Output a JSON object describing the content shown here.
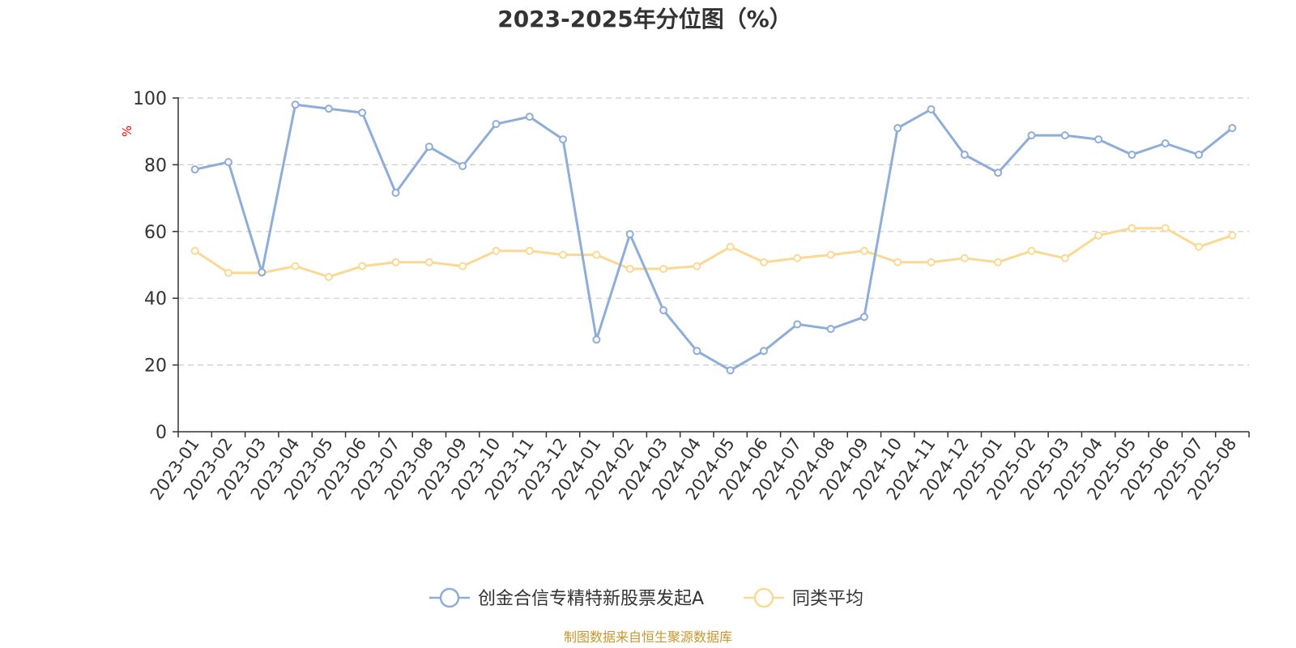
{
  "chart_data": {
    "type": "line",
    "title": "2023-2025年分位图（%）",
    "ylabel": "%",
    "ylim": [
      0,
      100
    ],
    "yticks": [
      0,
      20,
      40,
      60,
      80,
      100
    ],
    "grid": true,
    "legend_placement": "bottom-center",
    "x": [
      "2023-01",
      "2023-02",
      "2023-03",
      "2023-04",
      "2023-05",
      "2023-06",
      "2023-07",
      "2023-08",
      "2023-09",
      "2023-10",
      "2023-11",
      "2023-12",
      "2024-01",
      "2024-02",
      "2024-03",
      "2024-04",
      "2024-05",
      "2024-06",
      "2024-07",
      "2024-08",
      "2024-09",
      "2024-10",
      "2024-11",
      "2024-12",
      "2025-01",
      "2025-02",
      "2025-03",
      "2025-04",
      "2025-05",
      "2025-06",
      "2025-07",
      "2025-08"
    ],
    "series": [
      {
        "name": "创金合信专精特新股票发起A",
        "color": "#8eadd8",
        "values": [
          78.6,
          80.8,
          47.8,
          98.0,
          96.8,
          95.6,
          71.6,
          85.4,
          79.6,
          92.2,
          94.4,
          87.6,
          27.6,
          59.2,
          36.4,
          24.2,
          18.4,
          24.2,
          32.2,
          30.8,
          34.4,
          91.0,
          96.6,
          83.0,
          77.6,
          88.8,
          88.8,
          87.6,
          83.0,
          86.4,
          83.0,
          91.0
        ]
      },
      {
        "name": "同类平均",
        "color": "#fbd994",
        "values": [
          54.2,
          47.6,
          47.6,
          49.6,
          46.4,
          49.6,
          50.8,
          50.8,
          49.6,
          54.2,
          54.2,
          53.0,
          53.0,
          48.8,
          48.8,
          49.6,
          55.4,
          50.8,
          52.0,
          53.0,
          54.2,
          50.8,
          50.8,
          52.0,
          50.8,
          54.2,
          52.0,
          58.8,
          61.0,
          61.0,
          55.4,
          58.8
        ]
      }
    ]
  },
  "source_note": "制图数据来自恒生聚源数据库",
  "colors": {
    "axis": "#333333",
    "grid": "#cccccc",
    "ylabel": "#ff0000",
    "source": "#c8962e"
  }
}
